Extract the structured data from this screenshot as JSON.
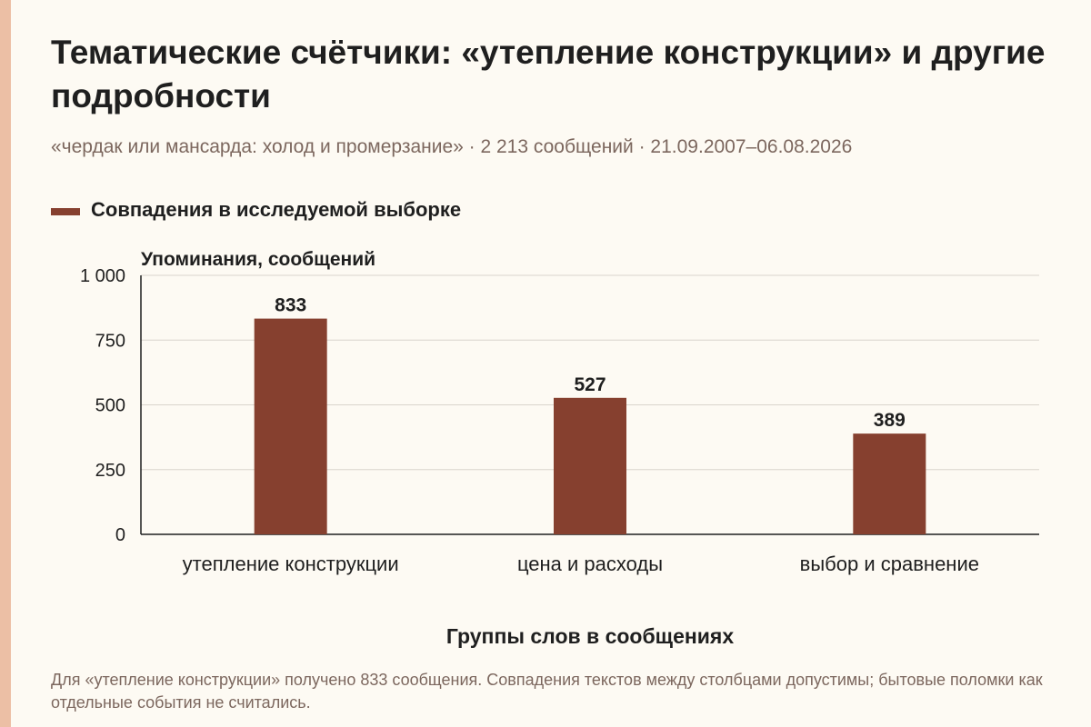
{
  "title": "Тематические счётчики: «утепление конструкции» и другие подробности",
  "subtitle": "«чердак или мансарда: холод и промерзание» · 2 213 сообщений · 21.09.2007–06.08.2026",
  "legend": {
    "label": "Совпадения в исследуемой выборке"
  },
  "footnote": "Для «утепление конструкции» получено 833 сообщения. Совпадения текстов между столбцами допустимы; бытовые поломки как отдельные события не считались.",
  "colors": {
    "bar": "#86402f",
    "accent": "#ecbfa5",
    "grid": "#d9d4cc",
    "background": "#fdfaf3"
  },
  "chart_data": {
    "type": "bar",
    "categories": [
      "утепление конструкции",
      "цена и расходы",
      "выбор и сравнение"
    ],
    "series": [
      {
        "name": "Совпадения в исследуемой выборке",
        "values": [
          833,
          527,
          389
        ]
      }
    ],
    "ylim": [
      0,
      1000
    ],
    "yticks": [
      0,
      250,
      500,
      750,
      1000
    ],
    "ytick_labels": [
      "0",
      "250",
      "500",
      "750",
      "1 000"
    ],
    "ylabel": "Упоминания, сообщений",
    "xlabel": "Группы слов в сообщениях",
    "data_labels": [
      "833",
      "527",
      "389"
    ],
    "grid": true,
    "legend_position": "top-left"
  }
}
